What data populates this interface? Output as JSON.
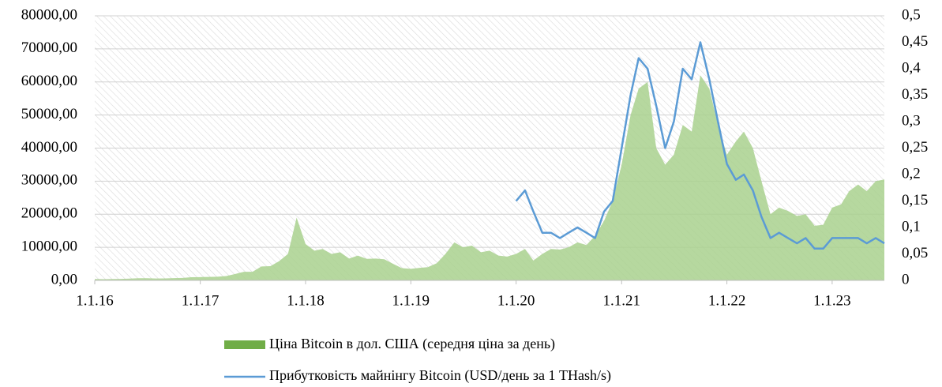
{
  "chart_data": {
    "type": "area-line",
    "x": [
      "2016-01-01",
      "2016-02-01",
      "2016-03-01",
      "2016-04-01",
      "2016-05-01",
      "2016-06-01",
      "2016-07-01",
      "2016-08-01",
      "2016-09-01",
      "2016-10-01",
      "2016-11-01",
      "2016-12-01",
      "2017-01-01",
      "2017-02-01",
      "2017-03-01",
      "2017-04-01",
      "2017-05-01",
      "2017-06-01",
      "2017-07-01",
      "2017-08-01",
      "2017-09-01",
      "2017-10-01",
      "2017-11-01",
      "2017-12-01",
      "2018-01-01",
      "2018-02-01",
      "2018-03-01",
      "2018-04-01",
      "2018-05-01",
      "2018-06-01",
      "2018-07-01",
      "2018-08-01",
      "2018-09-01",
      "2018-10-01",
      "2018-11-01",
      "2018-12-01",
      "2019-01-01",
      "2019-02-01",
      "2019-03-01",
      "2019-04-01",
      "2019-05-01",
      "2019-06-01",
      "2019-07-01",
      "2019-08-01",
      "2019-09-01",
      "2019-10-01",
      "2019-11-01",
      "2019-12-01",
      "2020-01-01",
      "2020-02-01",
      "2020-03-01",
      "2020-04-01",
      "2020-05-01",
      "2020-06-01",
      "2020-07-01",
      "2020-08-01",
      "2020-09-01",
      "2020-10-01",
      "2020-11-01",
      "2020-12-01",
      "2021-01-01",
      "2021-02-01",
      "2021-03-01",
      "2021-04-01",
      "2021-05-01",
      "2021-06-01",
      "2021-07-01",
      "2021-08-01",
      "2021-09-01",
      "2021-10-01",
      "2021-11-01",
      "2021-12-01",
      "2022-01-01",
      "2022-02-01",
      "2022-03-01",
      "2022-04-01",
      "2022-05-01",
      "2022-06-01",
      "2022-07-01",
      "2022-08-01",
      "2022-09-01",
      "2022-10-01",
      "2022-11-01",
      "2022-12-01",
      "2023-01-01",
      "2023-02-01",
      "2023-03-01",
      "2023-04-01",
      "2023-05-01",
      "2023-06-01",
      "2023-07-01"
    ],
    "series": [
      {
        "name": "Ціна Bitcoin в дол. США (середня ціна за день)",
        "color": "#a9d18e",
        "legend_color": "#70ad47",
        "values": [
          430,
          370,
          420,
          450,
          530,
          670,
          650,
          580,
          610,
          700,
          740,
          960,
          1000,
          1050,
          1100,
          1300,
          1900,
          2600,
          2600,
          4200,
          4300,
          5800,
          8000,
          19000,
          11000,
          9000,
          9500,
          8000,
          8500,
          6600,
          7500,
          6500,
          6600,
          6400,
          5000,
          3700,
          3500,
          3800,
          4000,
          5200,
          8000,
          11500,
          10000,
          10500,
          8500,
          9000,
          7500,
          7200,
          8000,
          9500,
          6000,
          8000,
          9500,
          9300,
          10000,
          11500,
          10700,
          13500,
          18000,
          24000,
          35000,
          50000,
          58000,
          60000,
          40000,
          35000,
          38000,
          47000,
          45000,
          62000,
          58000,
          47000,
          38000,
          42000,
          45000,
          40000,
          30000,
          20000,
          22000,
          21000,
          19500,
          20000,
          16500,
          16800,
          22000,
          23000,
          27000,
          29000,
          27000,
          30000,
          30500
        ]
      },
      {
        "name": "Прибутковість майнінгу Bitcoin (USD/день за 1 THash/s)",
        "color": "#5b9bd5",
        "axis": "y2",
        "values": [
          null,
          null,
          null,
          null,
          null,
          null,
          null,
          null,
          null,
          null,
          null,
          null,
          null,
          null,
          null,
          null,
          null,
          null,
          null,
          null,
          null,
          null,
          null,
          null,
          null,
          null,
          null,
          null,
          null,
          null,
          null,
          null,
          null,
          null,
          null,
          null,
          null,
          null,
          null,
          null,
          null,
          null,
          null,
          null,
          null,
          null,
          null,
          null,
          0.15,
          0.17,
          0.13,
          0.09,
          0.09,
          0.08,
          0.09,
          0.1,
          0.09,
          0.08,
          0.13,
          0.15,
          0.25,
          0.35,
          0.42,
          0.4,
          0.33,
          0.25,
          0.3,
          0.4,
          0.38,
          0.45,
          0.38,
          0.3,
          0.22,
          0.19,
          0.2,
          0.17,
          0.12,
          0.08,
          0.09,
          0.08,
          0.07,
          0.08,
          0.06,
          0.06,
          0.08,
          0.08,
          0.08,
          0.08,
          0.07,
          0.08,
          0.07
        ]
      }
    ],
    "xlim": [
      "2016-01-01",
      "2023-07-01"
    ],
    "xticks": [
      {
        "value": "2016-01-01",
        "label": "1.1.16"
      },
      {
        "value": "2017-01-01",
        "label": "1.1.17"
      },
      {
        "value": "2018-01-01",
        "label": "1.1.18"
      },
      {
        "value": "2019-01-01",
        "label": "1.1.19"
      },
      {
        "value": "2020-01-01",
        "label": "1.1.20"
      },
      {
        "value": "2021-01-01",
        "label": "1.1.21"
      },
      {
        "value": "2022-01-01",
        "label": "1.1.22"
      },
      {
        "value": "2023-01-01",
        "label": "1.1.23"
      }
    ],
    "ylim": [
      0,
      80000
    ],
    "yticks": [
      {
        "value": 0,
        "label": "0,00"
      },
      {
        "value": 10000,
        "label": "10000,00"
      },
      {
        "value": 20000,
        "label": "20000,00"
      },
      {
        "value": 30000,
        "label": "30000,00"
      },
      {
        "value": 40000,
        "label": "40000,00"
      },
      {
        "value": 50000,
        "label": "50000,00"
      },
      {
        "value": 60000,
        "label": "60000,00"
      },
      {
        "value": 70000,
        "label": "70000,00"
      },
      {
        "value": 80000,
        "label": "80000,00"
      }
    ],
    "y2lim": [
      0,
      0.5
    ],
    "y2ticks": [
      0,
      {
        "value": 0.05,
        "label": "0,05"
      },
      {
        "value": 0.1,
        "label": "0,1"
      },
      {
        "value": 0.15,
        "label": "0,15"
      },
      {
        "value": 0.2,
        "label": "0,2"
      },
      {
        "value": 0.25,
        "label": "0,25"
      },
      {
        "value": 0.3,
        "label": "0,3"
      },
      {
        "value": 0.35,
        "label": "0,35"
      },
      {
        "value": 0.4,
        "label": "0,4"
      },
      {
        "value": 0.45,
        "label": "0,45"
      },
      {
        "value": 0.5,
        "label": "0,5"
      }
    ],
    "grid": true,
    "legend": "bottom"
  }
}
